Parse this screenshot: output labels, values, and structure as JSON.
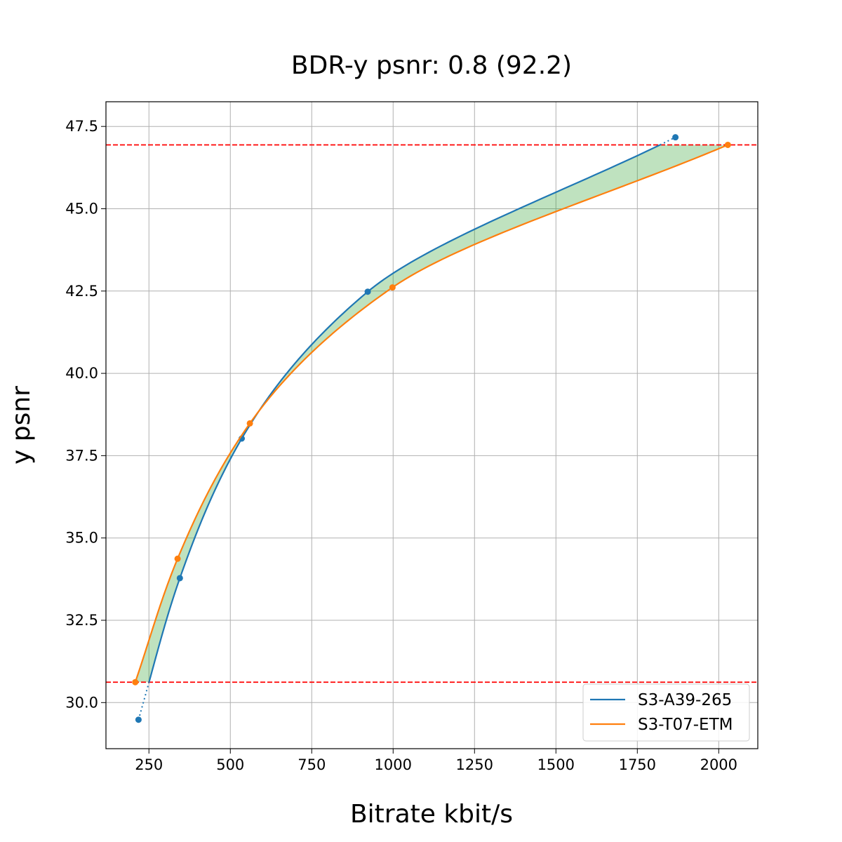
{
  "chart_data": {
    "type": "line",
    "title": "BDR-y psnr: 0.8 (92.2)",
    "xlabel": "Bitrate kbit/s",
    "ylabel": "y psnr",
    "xlim": [
      118,
      2120
    ],
    "ylim": [
      28.6,
      48.25
    ],
    "xticks": [
      250,
      500,
      750,
      1000,
      1250,
      1500,
      1750,
      2000
    ],
    "yticks": [
      30.0,
      32.5,
      35.0,
      37.5,
      40.0,
      42.5,
      45.0,
      47.5
    ],
    "grid": true,
    "legend_position": "lower-right",
    "overlap_band": {
      "color": "#2ca02c",
      "opacity": 0.3
    },
    "reference_lines": {
      "y": [
        30.62,
        46.94
      ],
      "color": "#ff0000",
      "style": "dashed"
    },
    "series": [
      {
        "name": "S3-A39-265",
        "color": "#1f77b4",
        "points": [
          {
            "x": 218,
            "y": 29.48
          },
          {
            "x": 345,
            "y": 33.78
          },
          {
            "x": 535,
            "y": 38.02
          },
          {
            "x": 922,
            "y": 42.48
          },
          {
            "x": 1867,
            "y": 47.17
          }
        ]
      },
      {
        "name": "S3-T07-ETM",
        "color": "#ff7f0e",
        "points": [
          {
            "x": 208,
            "y": 30.62
          },
          {
            "x": 338,
            "y": 34.37
          },
          {
            "x": 560,
            "y": 38.48
          },
          {
            "x": 998,
            "y": 42.61
          },
          {
            "x": 2028,
            "y": 46.94
          }
        ]
      }
    ]
  }
}
